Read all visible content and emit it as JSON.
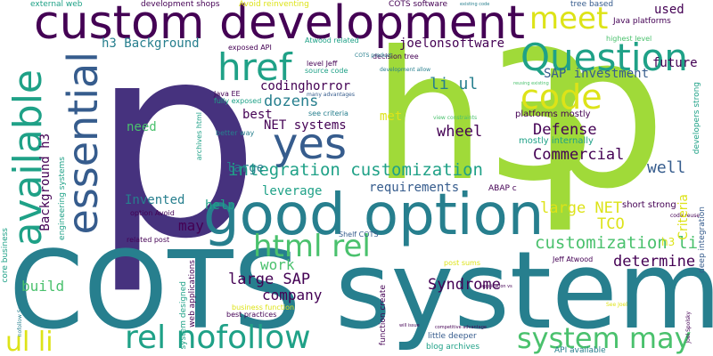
{
  "words": {
    "p_big": "p",
    "h3_big": "h3",
    "p_right": "p",
    "cots_system": "COTS system",
    "custom_development": "custom development",
    "good_option": "good option",
    "essential": "essential",
    "available": "available",
    "href": "href",
    "question": "Question",
    "meet": "meet",
    "code": "code",
    "yes": "yes",
    "html_rel": "html rel",
    "rel_nofollow": "rel nofollow",
    "system_may": "system may",
    "ul_li": "ul li",
    "integration_customization": "integration customization",
    "customization_li": "customization li",
    "li_ul": "li ul",
    "dozens": "dozens",
    "wheel": "wheel",
    "defense": "Defense",
    "commercial": "Commercial",
    "well": "well",
    "large_net": "large NET",
    "tco": "TCO",
    "determine": "determine",
    "syndrome": "Syndrome",
    "large_sap": "large SAP",
    "company": "company",
    "work": "work",
    "build": "build",
    "may": "may",
    "invented": "Invented",
    "help": "help",
    "leverage": "leverage",
    "requirements": "requirements",
    "large": "large",
    "need": "need",
    "best": "best",
    "codinghorror": "codinghorror",
    "net_systems": "NET systems",
    "met": "met",
    "sap_investment": "SAP investment",
    "used": "used",
    "future": "future",
    "h3_background": "h3 Background",
    "background_h3": "Background h3",
    "joelonsoftware": "joelonsoftware",
    "cots_software": "COTS software",
    "tree_based": "tree based",
    "java_platforms": "Java platforms",
    "highest_level": "highest level",
    "development_shops": "development shops",
    "avoid_reinventing": "Avoid reinventing",
    "external_web": "external web",
    "exposed_api": "exposed API",
    "atwood_related": "Atwood related",
    "decision_tree": "decision tree",
    "source_code": "source code",
    "level_jeff": "level Jeff",
    "java_ee": "Java EE",
    "fully_exposed": "fully exposed",
    "many_advantages": "many advantages",
    "see_criteria": "see criteria",
    "better_way": "better way",
    "platforms_mostly": "platforms mostly",
    "mostly_internally": "mostly internally",
    "criteria": "Criteria",
    "short_strong": "short strong",
    "developers_strong": "developers strong",
    "deep_integration": "deep integration",
    "abap_c": "ABAP c",
    "option_avoid": "option Avoid",
    "related_post": "related post",
    "shelf_cots": "Shelf COTS",
    "post_sums": "post sums",
    "jeff_atwood": "Jeff Atwood",
    "web_applications": "web applications",
    "system_designed": "system designed",
    "best_practices": "best practices",
    "business_function": "business function",
    "function_create": "function create",
    "little_deeper": "little deeper",
    "blog_archives": "blog archives",
    "api_available": "API available",
    "competitive_advantage": "competitive advantage",
    "application_vs": "application vs",
    "engineering_systems": "engineering systems",
    "core_business": "core business",
    "nofollow_see": "nofollow See",
    "archives_html": "archives html",
    "existing_code": "existing code",
    "cots_product": "COTS product",
    "development_allow": "development allow",
    "reusing_existing": "reusing existing",
    "view_constraints": "view constraints",
    "code_reuse": "code reuse",
    "see_joel": "See Joel",
    "joel_spolsky": "Joel Spolsky",
    "will_issue": "will issue",
    "h3_tail": "h3"
  },
  "palette": {
    "purple": "#440154",
    "indigo": "#46327e",
    "blue": "#365c8d",
    "teal": "#277f8e",
    "cyan": "#1fa187",
    "green": "#4ac16d",
    "lime": "#a0da39",
    "yellow": "#dde318"
  }
}
